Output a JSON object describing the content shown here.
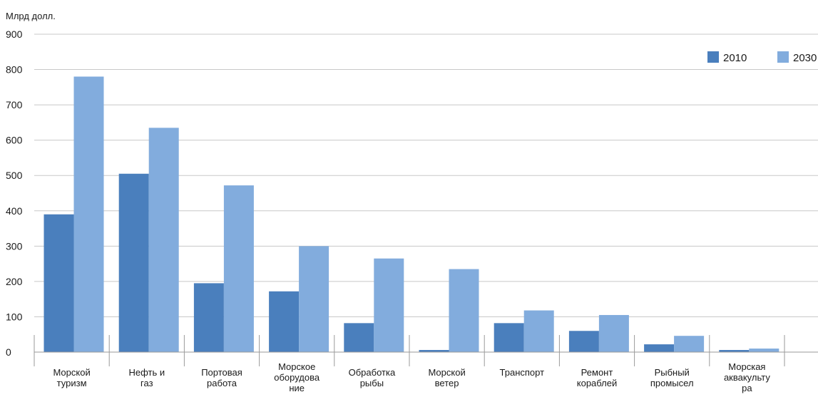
{
  "chart_data": {
    "type": "bar",
    "ylabel": "Млрд долл.",
    "ylim": [
      0,
      900
    ],
    "yticks": [
      0,
      100,
      200,
      300,
      400,
      500,
      600,
      700,
      800,
      900
    ],
    "grid": true,
    "legend_position": "top-right",
    "categories": [
      [
        "Морской",
        "туризм"
      ],
      [
        "Нефть и",
        "газ"
      ],
      [
        "Портовая",
        "работа"
      ],
      [
        "Морское",
        "оборудова",
        "ние"
      ],
      [
        "Обработка",
        "рыбы"
      ],
      [
        "Морской",
        "ветер"
      ],
      [
        "Транспорт"
      ],
      [
        "Ремонт",
        "кораблей"
      ],
      [
        "Рыбный",
        "промысел"
      ],
      [
        "Морская",
        "аквакульту",
        "ра"
      ]
    ],
    "series": [
      {
        "name": "2010",
        "color": "#4a7fbd",
        "values": [
          390,
          505,
          195,
          172,
          82,
          6,
          82,
          60,
          22,
          6
        ]
      },
      {
        "name": "2030",
        "color": "#82acdd",
        "values": [
          780,
          635,
          472,
          300,
          265,
          235,
          118,
          105,
          46,
          10
        ]
      }
    ]
  }
}
